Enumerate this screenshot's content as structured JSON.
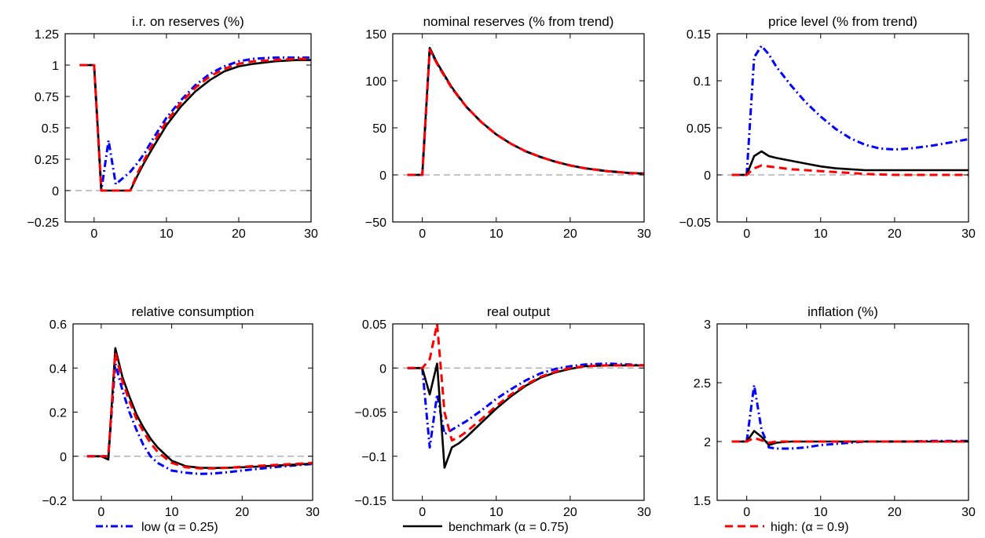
{
  "colors": {
    "low": "#0000ff",
    "benchmark": "#000000",
    "high": "#ff0000",
    "zero_line": "#a0a0a0"
  },
  "legend": [
    {
      "key": "low",
      "label": "low (α = 0.25)",
      "style": "dashdot"
    },
    {
      "key": "benchmark",
      "label": "benchmark (α = 0.75)",
      "style": "solid"
    },
    {
      "key": "high",
      "label": "high: (α = 0.9)",
      "style": "dashed"
    }
  ],
  "chart_data": [
    {
      "type": "line",
      "title": "i.r. on reserves (%)",
      "xlim": [
        -4,
        30
      ],
      "ylim": [
        -0.25,
        1.25
      ],
      "xticks": [
        0,
        10,
        20,
        30
      ],
      "xtick_labels": [
        "0",
        "10",
        "20",
        "30"
      ],
      "yticks": [
        -0.25,
        0,
        0.25,
        0.5,
        0.75,
        1,
        1.25
      ],
      "ytick_labels": [
        "−0.25",
        "0",
        "0.25",
        "0.5",
        "0.75",
        "1",
        "1.25"
      ],
      "zero_line": 0,
      "series": [
        {
          "key": "low",
          "name": "low (α = 0.25)",
          "x": [
            -2,
            0,
            1,
            2,
            3,
            4,
            5,
            6,
            7,
            8,
            10,
            12,
            14,
            16,
            18,
            20,
            22,
            25,
            28,
            30
          ],
          "y": [
            1,
            1,
            0,
            0.4,
            0.05,
            0.1,
            0.15,
            0.22,
            0.3,
            0.4,
            0.58,
            0.72,
            0.84,
            0.93,
            0.99,
            1.03,
            1.05,
            1.06,
            1.06,
            1.06
          ]
        },
        {
          "key": "benchmark",
          "name": "benchmark (α = 0.75)",
          "x": [
            -2,
            0,
            1,
            2,
            3,
            4,
            5,
            6,
            7,
            8,
            10,
            12,
            14,
            16,
            18,
            20,
            22,
            25,
            28,
            30
          ],
          "y": [
            1,
            1,
            0,
            0,
            0,
            0,
            0,
            0.12,
            0.23,
            0.33,
            0.52,
            0.67,
            0.79,
            0.88,
            0.95,
            0.99,
            1.01,
            1.03,
            1.04,
            1.04
          ]
        },
        {
          "key": "high",
          "name": "high: (α = 0.9)",
          "x": [
            -2,
            0,
            1,
            2,
            3,
            4,
            5,
            6,
            7,
            8,
            10,
            12,
            14,
            16,
            18,
            20,
            22,
            25,
            28,
            30
          ],
          "y": [
            1,
            1,
            0,
            0,
            0,
            0,
            0,
            0.14,
            0.25,
            0.36,
            0.55,
            0.7,
            0.82,
            0.91,
            0.97,
            1.01,
            1.03,
            1.04,
            1.05,
            1.05
          ]
        }
      ]
    },
    {
      "type": "line",
      "title": "nominal reserves (% from trend)",
      "xlim": [
        -4,
        30
      ],
      "ylim": [
        -50,
        150
      ],
      "xticks": [
        0,
        10,
        20,
        30
      ],
      "xtick_labels": [
        "0",
        "10",
        "20",
        "30"
      ],
      "yticks": [
        -50,
        0,
        50,
        100,
        150
      ],
      "ytick_labels": [
        "−50",
        "0",
        "50",
        "100",
        "150"
      ],
      "zero_line": 0,
      "series": [
        {
          "key": "low",
          "name": "low (α = 0.25)",
          "x": [
            -2,
            0,
            1,
            2,
            4,
            6,
            8,
            10,
            12,
            14,
            16,
            18,
            20,
            22,
            25,
            28,
            30
          ],
          "y": [
            0,
            0,
            134,
            118,
            92,
            72,
            56,
            43,
            33,
            25,
            19,
            14,
            10,
            7,
            4,
            2,
            1.5
          ]
        },
        {
          "key": "benchmark",
          "name": "benchmark (α = 0.75)",
          "x": [
            -2,
            0,
            1,
            2,
            4,
            6,
            8,
            10,
            12,
            14,
            16,
            18,
            20,
            22,
            25,
            28,
            30
          ],
          "y": [
            0,
            0,
            135,
            119,
            93,
            72,
            56,
            43,
            33,
            25,
            19,
            14,
            10,
            7,
            4,
            2,
            1.5
          ]
        },
        {
          "key": "high",
          "name": "high: (α = 0.9)",
          "x": [
            -2,
            0,
            1,
            2,
            4,
            6,
            8,
            10,
            12,
            14,
            16,
            18,
            20,
            22,
            25,
            28,
            30
          ],
          "y": [
            0,
            0,
            133,
            118,
            92,
            72,
            56,
            43,
            33,
            25,
            19,
            14,
            10,
            7,
            4,
            2,
            1.5
          ]
        }
      ]
    },
    {
      "type": "line",
      "title": "price level (% from trend)",
      "xlim": [
        -4,
        30
      ],
      "ylim": [
        -0.05,
        0.15
      ],
      "xticks": [
        0,
        10,
        20,
        30
      ],
      "xtick_labels": [
        "0",
        "10",
        "20",
        "30"
      ],
      "yticks": [
        -0.05,
        0,
        0.05,
        0.1,
        0.15
      ],
      "ytick_labels": [
        "−0.05",
        "0",
        "0.05",
        "0.1",
        "0.15"
      ],
      "zero_line": 0,
      "series": [
        {
          "key": "low",
          "name": "low (α = 0.25)",
          "x": [
            -2,
            0,
            1,
            2,
            3,
            4,
            6,
            8,
            10,
            12,
            14,
            16,
            18,
            20,
            22,
            25,
            28,
            30
          ],
          "y": [
            0,
            0,
            0.125,
            0.137,
            0.128,
            0.115,
            0.095,
            0.077,
            0.062,
            0.049,
            0.039,
            0.032,
            0.028,
            0.027,
            0.028,
            0.031,
            0.035,
            0.038
          ]
        },
        {
          "key": "benchmark",
          "name": "benchmark (α = 0.75)",
          "x": [
            -2,
            0,
            1,
            2,
            3,
            4,
            6,
            8,
            10,
            12,
            14,
            16,
            18,
            20,
            22,
            25,
            28,
            30
          ],
          "y": [
            0,
            0,
            0.02,
            0.025,
            0.02,
            0.018,
            0.015,
            0.012,
            0.009,
            0.007,
            0.006,
            0.005,
            0.005,
            0.005,
            0.005,
            0.005,
            0.005,
            0.005
          ]
        },
        {
          "key": "high",
          "name": "high: (α = 0.9)",
          "x": [
            -2,
            0,
            1,
            2,
            3,
            4,
            6,
            8,
            10,
            12,
            14,
            16,
            18,
            20,
            22,
            25,
            28,
            30
          ],
          "y": [
            0,
            0,
            0.007,
            0.01,
            0.009,
            0.008,
            0.006,
            0.005,
            0.004,
            0.003,
            0.002,
            0.001,
            0.0005,
            0,
            0,
            0,
            0,
            0
          ]
        }
      ]
    },
    {
      "type": "line",
      "title": "relative consumption",
      "xlim": [
        -4,
        30
      ],
      "ylim": [
        -0.2,
        0.6
      ],
      "xticks": [
        0,
        10,
        20,
        30
      ],
      "xtick_labels": [
        "0",
        "10",
        "20",
        "30"
      ],
      "yticks": [
        -0.2,
        0,
        0.2,
        0.4,
        0.6
      ],
      "ytick_labels": [
        "−0.2",
        "0",
        "0.2",
        "0.4",
        "0.6"
      ],
      "zero_line": 0,
      "series": [
        {
          "key": "low",
          "name": "low (α = 0.25)",
          "x": [
            -2,
            0,
            1,
            2,
            3,
            4,
            5,
            6,
            7,
            8,
            10,
            12,
            14,
            16,
            18,
            20,
            22,
            25,
            28,
            30
          ],
          "y": [
            0,
            0,
            0,
            0.42,
            0.3,
            0.2,
            0.12,
            0.05,
            0.0,
            -0.03,
            -0.065,
            -0.075,
            -0.08,
            -0.078,
            -0.072,
            -0.065,
            -0.058,
            -0.048,
            -0.04,
            -0.035
          ]
        },
        {
          "key": "benchmark",
          "name": "benchmark (α = 0.75)",
          "x": [
            -2,
            0,
            1,
            2,
            3,
            4,
            5,
            6,
            7,
            8,
            10,
            12,
            14,
            16,
            18,
            20,
            22,
            25,
            28,
            30
          ],
          "y": [
            0,
            0,
            -0.015,
            0.49,
            0.36,
            0.27,
            0.19,
            0.13,
            0.08,
            0.04,
            -0.02,
            -0.045,
            -0.052,
            -0.053,
            -0.052,
            -0.05,
            -0.047,
            -0.042,
            -0.037,
            -0.033
          ]
        },
        {
          "key": "high",
          "name": "high: (α = 0.9)",
          "x": [
            -2,
            0,
            1,
            2,
            3,
            4,
            5,
            6,
            7,
            8,
            10,
            12,
            14,
            16,
            18,
            20,
            22,
            25,
            28,
            30
          ],
          "y": [
            0,
            0,
            0,
            0.47,
            0.34,
            0.25,
            0.17,
            0.11,
            0.06,
            0.02,
            -0.03,
            -0.05,
            -0.055,
            -0.055,
            -0.052,
            -0.048,
            -0.044,
            -0.039,
            -0.034,
            -0.03
          ]
        }
      ]
    },
    {
      "type": "line",
      "title": "real output",
      "xlim": [
        -4,
        30
      ],
      "ylim": [
        -0.15,
        0.05
      ],
      "xticks": [
        0,
        10,
        20,
        30
      ],
      "xtick_labels": [
        "0",
        "10",
        "20",
        "30"
      ],
      "yticks": [
        -0.15,
        -0.1,
        -0.05,
        0,
        0.05
      ],
      "ytick_labels": [
        "−0.15",
        "−0.1",
        "−0.05",
        "0",
        "0.05"
      ],
      "zero_line": 0,
      "series": [
        {
          "key": "low",
          "name": "low (α = 0.25)",
          "x": [
            -2,
            0,
            1,
            2,
            3,
            4,
            5,
            6,
            8,
            10,
            12,
            14,
            16,
            18,
            20,
            22,
            25,
            28,
            30
          ],
          "y": [
            0,
            0,
            -0.09,
            -0.03,
            -0.075,
            -0.07,
            -0.065,
            -0.06,
            -0.048,
            -0.035,
            -0.024,
            -0.014,
            -0.006,
            -0.001,
            0.002,
            0.004,
            0.005,
            0.004,
            0.003
          ]
        },
        {
          "key": "benchmark",
          "name": "benchmark (α = 0.75)",
          "x": [
            -2,
            0,
            1,
            2,
            3,
            4,
            5,
            6,
            8,
            10,
            12,
            14,
            16,
            18,
            20,
            22,
            25,
            28,
            30
          ],
          "y": [
            0,
            0,
            -0.03,
            0.005,
            -0.113,
            -0.09,
            -0.085,
            -0.078,
            -0.062,
            -0.046,
            -0.032,
            -0.02,
            -0.011,
            -0.005,
            -0.001,
            0.002,
            0.003,
            0.003,
            0.003
          ]
        },
        {
          "key": "high",
          "name": "high: (α = 0.9)",
          "x": [
            -2,
            0,
            1,
            2,
            3,
            4,
            5,
            6,
            8,
            10,
            12,
            14,
            16,
            18,
            20,
            22,
            25,
            28,
            30
          ],
          "y": [
            0,
            0,
            0.01,
            0.05,
            -0.05,
            -0.082,
            -0.078,
            -0.072,
            -0.058,
            -0.043,
            -0.03,
            -0.019,
            -0.01,
            -0.004,
            0,
            0.002,
            0.003,
            0.003,
            0.003
          ]
        }
      ]
    },
    {
      "type": "line",
      "title": "inflation (%)",
      "xlim": [
        -4,
        30
      ],
      "ylim": [
        1.5,
        3
      ],
      "xticks": [
        0,
        10,
        20,
        30
      ],
      "xtick_labels": [
        "0",
        "10",
        "20",
        "30"
      ],
      "yticks": [
        1.5,
        2,
        2.5,
        3
      ],
      "ytick_labels": [
        "1.5",
        "2",
        "2.5",
        "3"
      ],
      "zero_line": null,
      "series": [
        {
          "key": "low",
          "name": "low (α = 0.25)",
          "x": [
            -2,
            0,
            1,
            2,
            3,
            4,
            6,
            8,
            10,
            12,
            14,
            16,
            18,
            20,
            22,
            25,
            28,
            30
          ],
          "y": [
            2,
            2,
            2.48,
            2.1,
            1.95,
            1.94,
            1.94,
            1.95,
            1.97,
            1.98,
            1.99,
            2,
            2,
            2,
            2,
            2.005,
            2.005,
            2.005
          ]
        },
        {
          "key": "benchmark",
          "name": "benchmark (α = 0.75)",
          "x": [
            -2,
            0,
            1,
            2,
            3,
            4,
            6,
            8,
            10,
            12,
            14,
            16,
            18,
            20,
            22,
            25,
            28,
            30
          ],
          "y": [
            2,
            2,
            2.09,
            2.04,
            1.97,
            1.99,
            2,
            2,
            2,
            2,
            2,
            2,
            2,
            2,
            2,
            2,
            2,
            2
          ]
        },
        {
          "key": "high",
          "name": "high: (α = 0.9)",
          "x": [
            -2,
            0,
            1,
            2,
            3,
            4,
            6,
            8,
            10,
            12,
            14,
            16,
            18,
            20,
            22,
            25,
            28,
            30
          ],
          "y": [
            2,
            2,
            2.03,
            2.01,
            1.99,
            2,
            2,
            2,
            2,
            2,
            2,
            2,
            2,
            2,
            2,
            2,
            2,
            2
          ]
        }
      ]
    }
  ]
}
